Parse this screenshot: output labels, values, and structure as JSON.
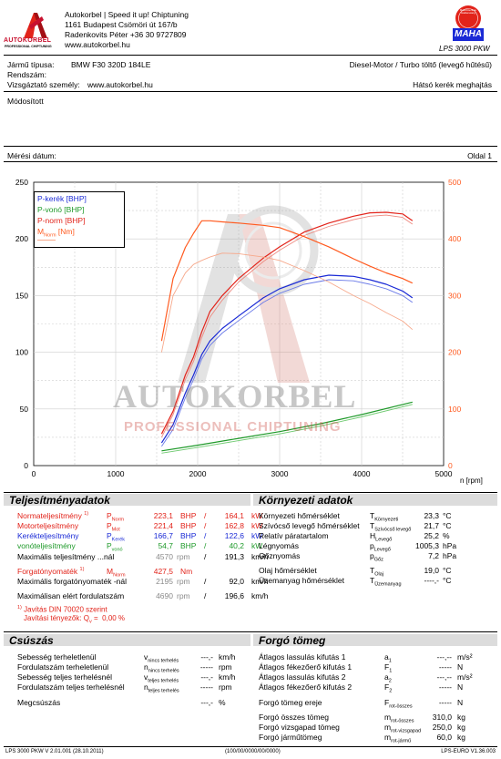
{
  "header": {
    "company_lines": [
      "Autokorbel | Speed it up! Chiptuning",
      "1161 Budapest Csömöri út 167/b",
      "Radenkovits Péter +36 30 9727809",
      "www.autokorbel.hu"
    ],
    "logo_text": "AUTOKORBEL",
    "logo_subtext": "PROFESSIONAL CHIPTUNING",
    "maha_badge_text": "MAHA",
    "maha_ring_text": "Maschinenbau Haldenwang",
    "lps_model": "LPS 3000 PKW"
  },
  "vehicle": {
    "type_label": "Jármű típusa:",
    "type_value": "BMW F30 320D 184LE",
    "engine_desc": "Diesel-Motor / Turbo töltő (levegő hűtésű)",
    "reg_label": "Rendszám:",
    "inspector_label": "Vizsgáztató személy:",
    "inspector_value": "www.autokorbel.hu",
    "drive": "Hátsó kerék meghajtás",
    "modified": "Módosított",
    "date_label": "Mérési dátum:",
    "page_label": "Oldal 1"
  },
  "chart_data": {
    "type": "line",
    "xlabel": "n [rpm]",
    "xlim": [
      0,
      5000
    ],
    "ylim_left": [
      0,
      250
    ],
    "ylim_right": [
      0,
      500
    ],
    "x_ticks": [
      "0",
      "1000",
      "2000",
      "3000",
      "4000",
      "5000"
    ],
    "y_ticks_left": [
      "0",
      "50",
      "100",
      "150",
      "200",
      "250"
    ],
    "y_ticks_right": [
      "0",
      "100",
      "200",
      "300",
      "400",
      "500"
    ],
    "grid": true,
    "legend": [
      {
        "label": "P-kerék [BHP]",
        "color": "#1a2ad6"
      },
      {
        "label": "P-vonó [BHP]",
        "color": "#1f9a2a"
      },
      {
        "label": "P-norm [BHP]",
        "color": "#e2231a"
      },
      {
        "label": "M",
        "sub": "Norm",
        "tail": " [Nm]",
        "color": "#ff5a1f"
      }
    ],
    "series": [
      {
        "axis": "left",
        "color": "#e2231a",
        "width": 1.2,
        "x": [
          1560,
          1700,
          1850,
          1950,
          2050,
          2150,
          2300,
          2500,
          2800,
          3000,
          3300,
          3600,
          3900,
          4100,
          4300,
          4500,
          4620
        ],
        "y": [
          28,
          48,
          80,
          96,
          118,
          136,
          150,
          165,
          183,
          193,
          206,
          214,
          220,
          223,
          223.5,
          222,
          216
        ]
      },
      {
        "axis": "left",
        "color": "#ee8a80",
        "width": 0.9,
        "x": [
          1560,
          1700,
          1850,
          1950,
          2050,
          2150,
          2300,
          2500,
          2800,
          3000,
          3300,
          3600,
          3900,
          4100,
          4300,
          4500,
          4620
        ],
        "y": [
          25,
          45,
          76,
          92,
          113,
          131,
          146,
          162,
          180,
          190,
          203,
          211,
          217,
          220,
          221,
          219,
          213
        ]
      },
      {
        "axis": "left",
        "color": "#1a2ad6",
        "width": 1.2,
        "x": [
          1560,
          1700,
          1850,
          1950,
          2050,
          2150,
          2300,
          2500,
          2800,
          3000,
          3300,
          3600,
          3900,
          4100,
          4300,
          4500,
          4620
        ],
        "y": [
          20,
          36,
          64,
          80,
          98,
          110,
          121,
          132,
          148,
          156,
          164,
          168,
          167,
          164,
          160,
          154,
          148
        ]
      },
      {
        "axis": "left",
        "color": "#6a7ae8",
        "width": 0.9,
        "x": [
          1560,
          1700,
          1850,
          1950,
          2050,
          2150,
          2300,
          2500,
          2800,
          3000,
          3300,
          3600,
          3900,
          4100,
          4300,
          4500,
          4620
        ],
        "y": [
          17,
          32,
          60,
          76,
          94,
          106,
          117,
          128,
          144,
          152,
          160,
          164,
          163,
          160,
          156,
          150,
          144
        ]
      },
      {
        "axis": "left",
        "color": "#1f9a2a",
        "width": 1.2,
        "x": [
          1560,
          2000,
          2500,
          3000,
          3500,
          4000,
          4620
        ],
        "y": [
          13,
          18,
          24,
          30,
          37,
          45,
          56
        ]
      },
      {
        "axis": "left",
        "color": "#6fca70",
        "width": 0.9,
        "x": [
          1560,
          2000,
          2500,
          3000,
          3500,
          4000,
          4620
        ],
        "y": [
          11,
          16,
          22,
          28,
          35,
          43,
          54
        ]
      },
      {
        "axis": "right",
        "color": "#ff5a1f",
        "width": 1.2,
        "x": [
          1560,
          1700,
          1850,
          1950,
          2050,
          2150,
          2300,
          2500,
          2800,
          3000,
          3300,
          3600,
          3900,
          4100,
          4300,
          4500,
          4620
        ],
        "y": [
          220,
          330,
          385,
          410,
          432,
          432,
          430,
          428,
          424,
          420,
          404,
          386,
          365,
          352,
          340,
          330,
          322
        ]
      },
      {
        "axis": "right",
        "color": "#f7a98c",
        "width": 0.9,
        "x": [
          1560,
          1700,
          1850,
          1950,
          2050,
          2150,
          2300,
          2500,
          2800,
          3000,
          3300,
          3600,
          3900,
          4100,
          4300,
          4500,
          4620
        ],
        "y": [
          200,
          300,
          340,
          355,
          362,
          368,
          375,
          374,
          368,
          362,
          344,
          324,
          300,
          286,
          270,
          255,
          240
        ]
      }
    ]
  },
  "watermark": {
    "line1": "AUTOKORBEL",
    "line2": "PROFESSIONAL CHIPTUNING"
  },
  "perf": {
    "title": "Teljesítményadatok",
    "rows": [
      {
        "label": "Normateljesítmény",
        "sup": "1)",
        "sym": "P",
        "sub": "Norm",
        "v1": "223,1",
        "u1": "BHP",
        "sep": "/",
        "v2": "164,1",
        "u2": "kW",
        "cls": "red"
      },
      {
        "label": "Motorteljesítmény",
        "sup": "",
        "sym": "P",
        "sub": "Mot",
        "v1": "221,4",
        "u1": "BHP",
        "sep": "/",
        "v2": "162,8",
        "u2": "kW",
        "cls": "red"
      },
      {
        "label": "Kerékteljesítmény",
        "sup": "",
        "sym": "P",
        "sub": "Kerék",
        "v1": "166,7",
        "u1": "BHP",
        "sep": "/",
        "v2": "122,6",
        "u2": "kW",
        "cls": "blue"
      },
      {
        "label": "vonóteljesítmény",
        "sup": "",
        "sym": "P",
        "sub": "vonó",
        "v1": "54,7",
        "u1": "BHP",
        "sep": "/",
        "v2": "40,2",
        "u2": "kW",
        "cls": "green"
      }
    ],
    "maxp_label": "Maximális teljesítmény ...nál",
    "maxp_rpm": "4570",
    "maxp_unit": "rpm",
    "maxp_sep": "/",
    "maxp_speed": "191,3",
    "maxp_speed_unit": "km/h",
    "torque_label": "Forgatónyomaték",
    "torque_sup": "1)",
    "torque_sym": "M",
    "torque_sub": "Norm",
    "torque_value": "427,5",
    "torque_unit": "Nm",
    "maxt_label": "Maximális forgatónyomaték -nál",
    "maxt_rpm": "2195",
    "maxt_unit": "rpm",
    "maxt_sep": "/",
    "maxt_speed": "92,0",
    "maxt_speed_unit": "km/h",
    "maxrpm_label": "Maximálisan elért fordulatszám",
    "maxrpm_rpm": "4690",
    "maxrpm_unit": "rpm",
    "maxrpm_sep": "/",
    "maxrpm_speed": "196,6",
    "maxrpm_speed_unit": "km/h",
    "note_line1": "Javítás DIN 70020 szerint",
    "note_sup": "1)",
    "note_line2_label": "Javítási tényezők: Q",
    "note_line2_sub": "v",
    "note_line2_eq": "=",
    "note_line2_value": "0,00 %"
  },
  "env": {
    "title": "Környezeti adatok",
    "rows": [
      {
        "label": "Környezeti hőmérséklet",
        "sym": "T",
        "sub": "Környezeti",
        "value": "23,3",
        "unit": "°C"
      },
      {
        "label": "Szívócső levegő hőmérséklet",
        "sym": "T",
        "sub": "Szívócső levegő",
        "value": "21,7",
        "unit": "°C"
      },
      {
        "label": "Relatív páratartalom",
        "sym": "H",
        "sub": "Levegő",
        "value": "25,2",
        "unit": "%"
      },
      {
        "label": "Légnyomás",
        "sym": "p",
        "sub": "Levegő",
        "value": "1005,3",
        "unit": "hPa"
      },
      {
        "label": "Gőznyomás",
        "sym": "p",
        "sub": "Gőz",
        "value": "7,2",
        "unit": "hPa"
      },
      {
        "label": "Olaj hőmérséklet",
        "sym": "T",
        "sub": "Olaj",
        "value": "19,0",
        "unit": "°C"
      },
      {
        "label": "Üzemanyag hőmérséklet",
        "sym": "T",
        "sub": "Üzemanyag",
        "value": "----,-",
        "unit": "°C"
      }
    ]
  },
  "slip": {
    "title": "Csúszás",
    "rows": [
      {
        "label": "Sebesség terheletlenül",
        "sym": "v",
        "sub": "nincs terhelés",
        "value": "---,-",
        "unit": "km/h"
      },
      {
        "label": "Fordulatszám terheletlenül",
        "sym": "n",
        "sub": "nincs terhelés",
        "value": "-----",
        "unit": "rpm"
      },
      {
        "label": "Sebesség teljes terhelésnél",
        "sym": "v",
        "sub": "teljes terhelés",
        "value": "---,-",
        "unit": "km/h"
      },
      {
        "label": "Fordulatszám teljes terhelésnél",
        "sym": "n",
        "sub": "teljes terhelés",
        "value": "-----",
        "unit": "rpm"
      },
      {
        "label": "Megcsúszás",
        "sym": "",
        "sub": "",
        "value": "---,-",
        "unit": "%"
      }
    ]
  },
  "mass": {
    "title": "Forgó tömeg",
    "rows": [
      {
        "label": "Átlagos lassulás kifutás 1",
        "sym": "a",
        "sub": "1",
        "value": "---,--",
        "unit": "m/s²"
      },
      {
        "label": "Átlagos fékezőerő kifutás 1",
        "sym": "F",
        "sub": "1",
        "value": "-----",
        "unit": "N"
      },
      {
        "label": "Átlagos lassulás kifutás 2",
        "sym": "a",
        "sub": "2",
        "value": "---,--",
        "unit": "m/s²"
      },
      {
        "label": "Átlagos fékezőerő kifutás 2",
        "sym": "F",
        "sub": "2",
        "value": "-----",
        "unit": "N"
      },
      {
        "label": "Forgó tömeg ereje",
        "sym": "F",
        "sub": "rot-összes",
        "value": "-----",
        "unit": "N"
      },
      {
        "label": "Forgó összes tömeg",
        "sym": "m",
        "sub": "rot-összes",
        "value": "310,0",
        "unit": "kg"
      },
      {
        "label": "Forgó vizsgapad tömeg",
        "sym": "m",
        "sub": "rot-vizsgapad",
        "value": "250,0",
        "unit": "kg"
      },
      {
        "label": "Forgó járműtömeg",
        "sym": "m",
        "sub": "rot-jármű",
        "value": "60,0",
        "unit": "kg"
      }
    ]
  },
  "footer": {
    "left": "LPS 3000 PKW V 2.01.001 (28.10.2011)",
    "center": "(100/00/0000/00/0000)",
    "right": "LPS-EURO V1.36.003"
  },
  "colors": {
    "red": "#e2231a",
    "blue": "#1a2ad6",
    "green": "#1f9a2a",
    "orange": "#ff5a1f",
    "logo_red": "#c8102e"
  }
}
